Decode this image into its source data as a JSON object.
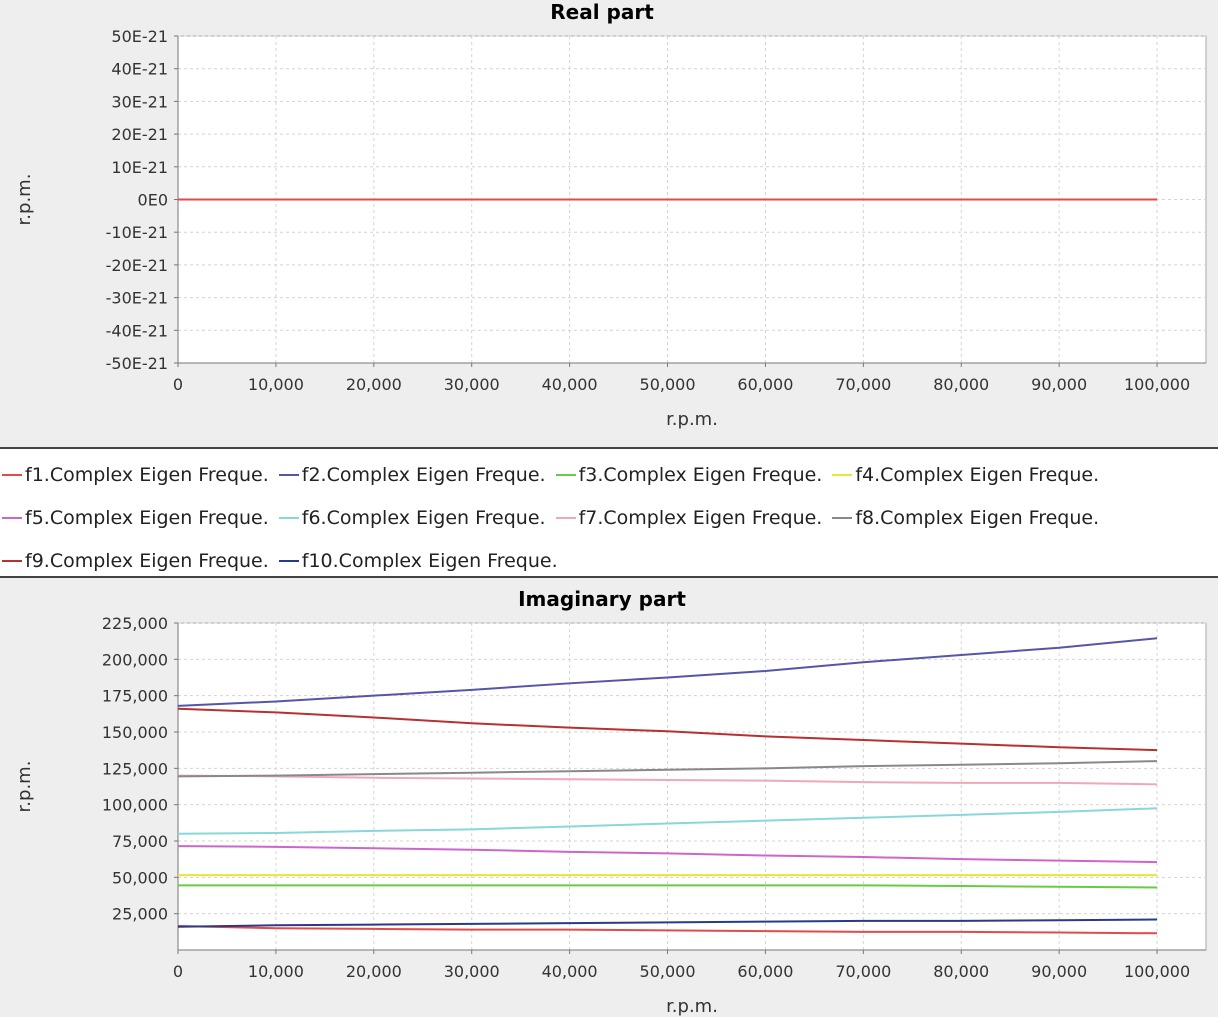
{
  "legend": [
    {
      "label": "f1.Complex Eigen Freque.",
      "color": "#e34a4a"
    },
    {
      "label": "f2.Complex Eigen Freque.",
      "color": "#5555aa"
    },
    {
      "label": "f3.Complex Eigen Freque.",
      "color": "#66cc44"
    },
    {
      "label": "f4.Complex Eigen Freque.",
      "color": "#e6e633"
    },
    {
      "label": "f5.Complex Eigen Freque.",
      "color": "#cc66cc"
    },
    {
      "label": "f6.Complex Eigen Freque.",
      "color": "#88d8d8"
    },
    {
      "label": "f7.Complex Eigen Freque.",
      "color": "#f0a8b8"
    },
    {
      "label": "f8.Complex Eigen Freque.",
      "color": "#888888"
    },
    {
      "label": "f9.Complex Eigen Freque.",
      "color": "#b83030"
    },
    {
      "label": "f10.Complex Eigen Freque.",
      "color": "#2a3a8a"
    }
  ],
  "chart_data": [
    {
      "type": "line",
      "title": "Real part",
      "xlabel": "r.p.m.",
      "ylabel": "r.p.m.",
      "xlim": [
        0,
        105000
      ],
      "ylim": [
        -5e-20,
        5e-20
      ],
      "grid": true,
      "x_ticks": [
        0,
        10000,
        20000,
        30000,
        40000,
        50000,
        60000,
        70000,
        80000,
        90000,
        100000
      ],
      "x_tick_labels": [
        "0",
        "10,000",
        "20,000",
        "30,000",
        "40,000",
        "50,000",
        "60,000",
        "70,000",
        "80,000",
        "90,000",
        "100,000"
      ],
      "y_ticks": [
        5e-20,
        4e-20,
        3e-20,
        2e-20,
        1e-20,
        0,
        -1e-20,
        -2e-20,
        -3e-20,
        -4e-20,
        -5e-20
      ],
      "y_tick_labels": [
        "50E-21",
        "40E-21",
        "30E-21",
        "20E-21",
        "10E-21",
        "0E0",
        "-10E-21",
        "-20E-21",
        "-30E-21",
        "-40E-21",
        "-50E-21"
      ],
      "x": [
        0,
        100000
      ],
      "series": [
        {
          "values": [
            0,
            0
          ],
          "color": "#e34a4a"
        }
      ]
    },
    {
      "type": "line",
      "title": "Imaginary part",
      "xlabel": "r.p.m.",
      "ylabel": "r.p.m.",
      "xlim": [
        0,
        105000
      ],
      "ylim": [
        0,
        225000
      ],
      "grid": true,
      "x_ticks": [
        0,
        10000,
        20000,
        30000,
        40000,
        50000,
        60000,
        70000,
        80000,
        90000,
        100000
      ],
      "x_tick_labels": [
        "0",
        "10,000",
        "20,000",
        "30,000",
        "40,000",
        "50,000",
        "60,000",
        "70,000",
        "80,000",
        "90,000",
        "100,000"
      ],
      "y_ticks": [
        225000,
        200000,
        175000,
        150000,
        125000,
        100000,
        75000,
        50000,
        25000
      ],
      "y_tick_labels": [
        "225,000",
        "200,000",
        "175,000",
        "150,000",
        "125,000",
        "100,000",
        "75,000",
        "50,000",
        "25,000"
      ],
      "x": [
        0,
        10000,
        20000,
        30000,
        40000,
        50000,
        60000,
        70000,
        80000,
        90000,
        100000
      ],
      "series": [
        {
          "name": "f1.Complex Eigen Freque.",
          "color": "#e34a4a",
          "values": [
            16500,
            15000,
            14500,
            14000,
            14000,
            13500,
            13000,
            12500,
            12500,
            12000,
            11500
          ]
        },
        {
          "name": "f2.Complex Eigen Freque.",
          "color": "#5555aa",
          "values": [
            168000,
            171000,
            175000,
            179000,
            183500,
            187500,
            192000,
            198000,
            203000,
            208000,
            214500
          ]
        },
        {
          "name": "f3.Complex Eigen Freque.",
          "color": "#66cc44",
          "values": [
            44500,
            44500,
            44500,
            44500,
            44500,
            44500,
            44500,
            44500,
            44000,
            43500,
            43000
          ]
        },
        {
          "name": "f4.Complex Eigen Freque.",
          "color": "#e6e633",
          "values": [
            51500,
            51500,
            51500,
            51500,
            51500,
            51500,
            51500,
            51500,
            51500,
            51500,
            51500
          ]
        },
        {
          "name": "f5.Complex Eigen Freque.",
          "color": "#cc66cc",
          "values": [
            71500,
            71000,
            70000,
            69000,
            67500,
            66500,
            65000,
            64000,
            62500,
            61500,
            60500
          ]
        },
        {
          "name": "f6.Complex Eigen Freque.",
          "color": "#88d8d8",
          "values": [
            80000,
            80500,
            82000,
            83000,
            85000,
            87000,
            89000,
            91000,
            93000,
            95000,
            97500
          ]
        },
        {
          "name": "f7.Complex Eigen Freque.",
          "color": "#f0a8b8",
          "values": [
            120000,
            119500,
            118500,
            118000,
            117500,
            117000,
            116500,
            115500,
            115000,
            115000,
            114000
          ]
        },
        {
          "name": "f8.Complex Eigen Freque.",
          "color": "#888888",
          "values": [
            119500,
            120000,
            121000,
            122000,
            123000,
            124000,
            125000,
            126500,
            127500,
            128500,
            130000
          ]
        },
        {
          "name": "f9.Complex Eigen Freque.",
          "color": "#b83030",
          "values": [
            166000,
            163500,
            160000,
            156000,
            153000,
            150500,
            147000,
            144500,
            142000,
            139500,
            137500
          ]
        },
        {
          "name": "f10.Complex Eigen Freque.",
          "color": "#2a3a8a",
          "values": [
            16000,
            17000,
            17500,
            18000,
            18500,
            19000,
            19500,
            20000,
            20000,
            20500,
            21000
          ]
        }
      ]
    }
  ]
}
